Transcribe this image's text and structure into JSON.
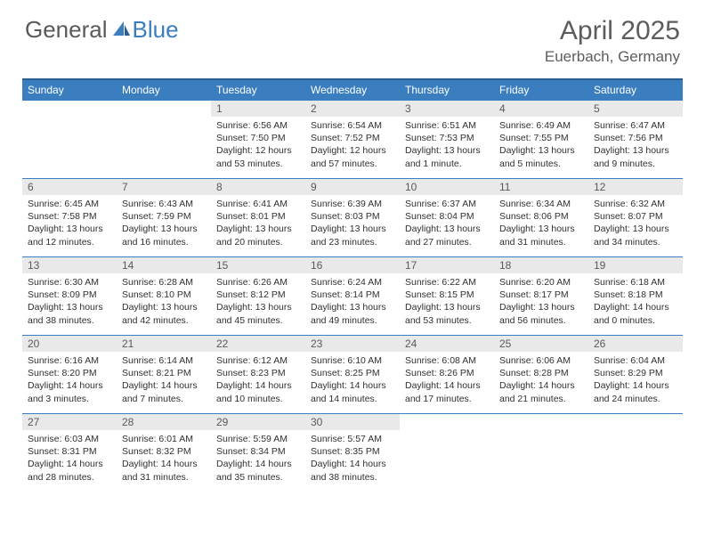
{
  "brand": {
    "general": "General",
    "blue": "Blue"
  },
  "title": "April 2025",
  "location": "Euerbach, Germany",
  "colors": {
    "header_bg": "#3a7ebf",
    "header_border": "#2c5d8f",
    "row_border": "#3a7ebf",
    "daynum_bg": "#e9e9e9",
    "text": "#303030",
    "title_color": "#5c5c5e"
  },
  "weekdays": [
    "Sunday",
    "Monday",
    "Tuesday",
    "Wednesday",
    "Thursday",
    "Friday",
    "Saturday"
  ],
  "weeks": [
    [
      {
        "n": "",
        "sr": "",
        "ss": "",
        "dl": ""
      },
      {
        "n": "",
        "sr": "",
        "ss": "",
        "dl": ""
      },
      {
        "n": "1",
        "sr": "6:56 AM",
        "ss": "7:50 PM",
        "dl": "12 hours and 53 minutes."
      },
      {
        "n": "2",
        "sr": "6:54 AM",
        "ss": "7:52 PM",
        "dl": "12 hours and 57 minutes."
      },
      {
        "n": "3",
        "sr": "6:51 AM",
        "ss": "7:53 PM",
        "dl": "13 hours and 1 minute."
      },
      {
        "n": "4",
        "sr": "6:49 AM",
        "ss": "7:55 PM",
        "dl": "13 hours and 5 minutes."
      },
      {
        "n": "5",
        "sr": "6:47 AM",
        "ss": "7:56 PM",
        "dl": "13 hours and 9 minutes."
      }
    ],
    [
      {
        "n": "6",
        "sr": "6:45 AM",
        "ss": "7:58 PM",
        "dl": "13 hours and 12 minutes."
      },
      {
        "n": "7",
        "sr": "6:43 AM",
        "ss": "7:59 PM",
        "dl": "13 hours and 16 minutes."
      },
      {
        "n": "8",
        "sr": "6:41 AM",
        "ss": "8:01 PM",
        "dl": "13 hours and 20 minutes."
      },
      {
        "n": "9",
        "sr": "6:39 AM",
        "ss": "8:03 PM",
        "dl": "13 hours and 23 minutes."
      },
      {
        "n": "10",
        "sr": "6:37 AM",
        "ss": "8:04 PM",
        "dl": "13 hours and 27 minutes."
      },
      {
        "n": "11",
        "sr": "6:34 AM",
        "ss": "8:06 PM",
        "dl": "13 hours and 31 minutes."
      },
      {
        "n": "12",
        "sr": "6:32 AM",
        "ss": "8:07 PM",
        "dl": "13 hours and 34 minutes."
      }
    ],
    [
      {
        "n": "13",
        "sr": "6:30 AM",
        "ss": "8:09 PM",
        "dl": "13 hours and 38 minutes."
      },
      {
        "n": "14",
        "sr": "6:28 AM",
        "ss": "8:10 PM",
        "dl": "13 hours and 42 minutes."
      },
      {
        "n": "15",
        "sr": "6:26 AM",
        "ss": "8:12 PM",
        "dl": "13 hours and 45 minutes."
      },
      {
        "n": "16",
        "sr": "6:24 AM",
        "ss": "8:14 PM",
        "dl": "13 hours and 49 minutes."
      },
      {
        "n": "17",
        "sr": "6:22 AM",
        "ss": "8:15 PM",
        "dl": "13 hours and 53 minutes."
      },
      {
        "n": "18",
        "sr": "6:20 AM",
        "ss": "8:17 PM",
        "dl": "13 hours and 56 minutes."
      },
      {
        "n": "19",
        "sr": "6:18 AM",
        "ss": "8:18 PM",
        "dl": "14 hours and 0 minutes."
      }
    ],
    [
      {
        "n": "20",
        "sr": "6:16 AM",
        "ss": "8:20 PM",
        "dl": "14 hours and 3 minutes."
      },
      {
        "n": "21",
        "sr": "6:14 AM",
        "ss": "8:21 PM",
        "dl": "14 hours and 7 minutes."
      },
      {
        "n": "22",
        "sr": "6:12 AM",
        "ss": "8:23 PM",
        "dl": "14 hours and 10 minutes."
      },
      {
        "n": "23",
        "sr": "6:10 AM",
        "ss": "8:25 PM",
        "dl": "14 hours and 14 minutes."
      },
      {
        "n": "24",
        "sr": "6:08 AM",
        "ss": "8:26 PM",
        "dl": "14 hours and 17 minutes."
      },
      {
        "n": "25",
        "sr": "6:06 AM",
        "ss": "8:28 PM",
        "dl": "14 hours and 21 minutes."
      },
      {
        "n": "26",
        "sr": "6:04 AM",
        "ss": "8:29 PM",
        "dl": "14 hours and 24 minutes."
      }
    ],
    [
      {
        "n": "27",
        "sr": "6:03 AM",
        "ss": "8:31 PM",
        "dl": "14 hours and 28 minutes."
      },
      {
        "n": "28",
        "sr": "6:01 AM",
        "ss": "8:32 PM",
        "dl": "14 hours and 31 minutes."
      },
      {
        "n": "29",
        "sr": "5:59 AM",
        "ss": "8:34 PM",
        "dl": "14 hours and 35 minutes."
      },
      {
        "n": "30",
        "sr": "5:57 AM",
        "ss": "8:35 PM",
        "dl": "14 hours and 38 minutes."
      },
      {
        "n": "",
        "sr": "",
        "ss": "",
        "dl": ""
      },
      {
        "n": "",
        "sr": "",
        "ss": "",
        "dl": ""
      },
      {
        "n": "",
        "sr": "",
        "ss": "",
        "dl": ""
      }
    ]
  ],
  "labels": {
    "sunrise": "Sunrise: ",
    "sunset": "Sunset: ",
    "daylight": "Daylight: "
  }
}
